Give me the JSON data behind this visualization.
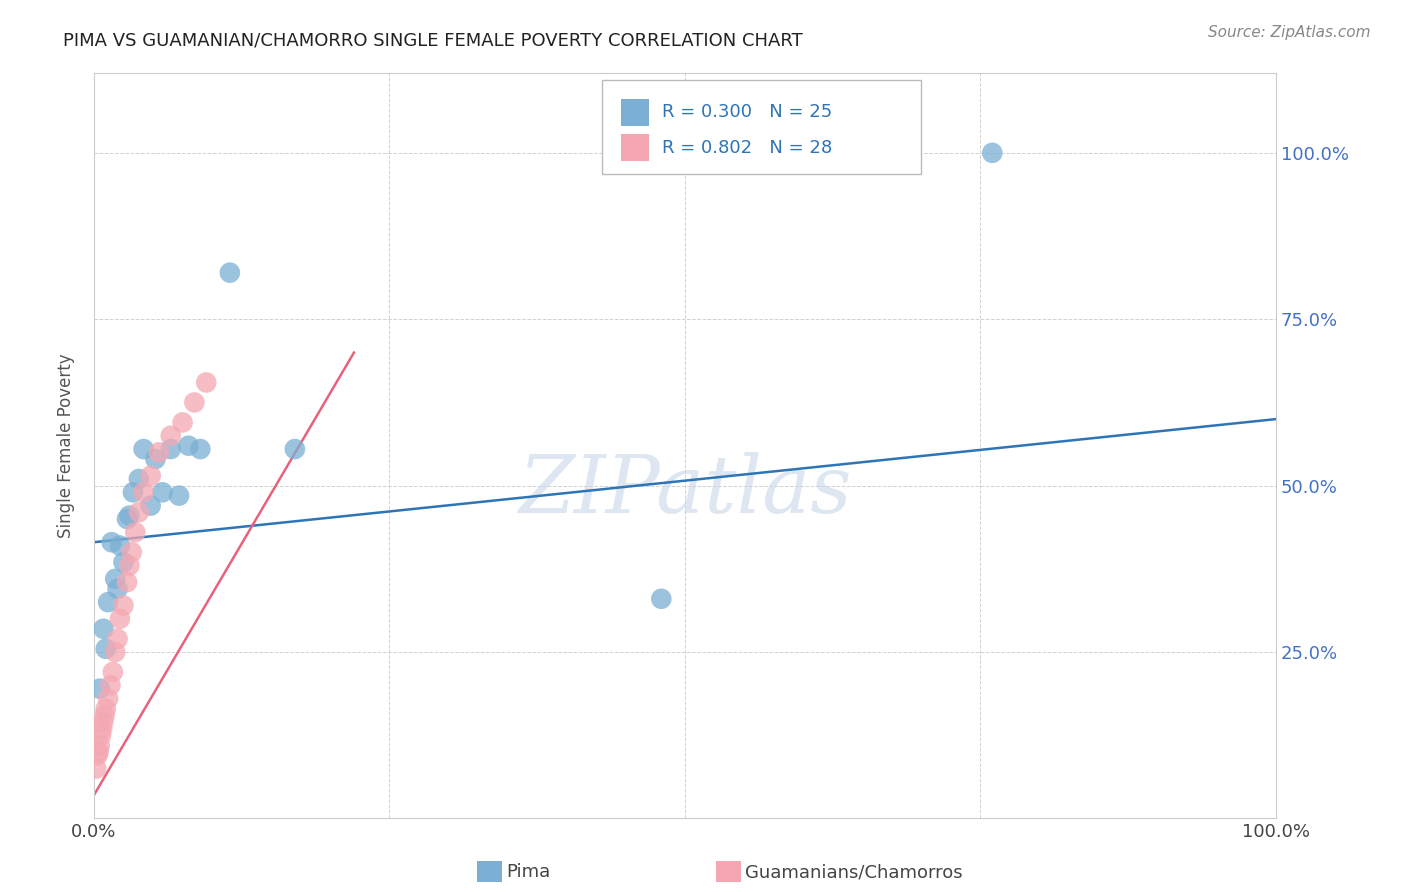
{
  "title": "PIMA VS GUAMANIAN/CHAMORRO SINGLE FEMALE POVERTY CORRELATION CHART",
  "source": "Source: ZipAtlas.com",
  "ylabel": "Single Female Poverty",
  "watermark": "ZIPatlas",
  "xlim": [
    0.0,
    1.0
  ],
  "ylim": [
    0.0,
    1.12
  ],
  "xticks": [
    0.0,
    0.25,
    0.5,
    0.75,
    1.0
  ],
  "yticks": [
    0.0,
    0.25,
    0.5,
    0.75,
    1.0
  ],
  "xtick_labels": [
    "0.0%",
    "",
    "",
    "",
    "100.0%"
  ],
  "ytick_labels": [
    "",
    "25.0%",
    "50.0%",
    "75.0%",
    "100.0%"
  ],
  "pima_R": "0.300",
  "pima_N": "25",
  "guam_R": "0.802",
  "guam_N": "28",
  "pima_color": "#7bafd4",
  "guam_color": "#f4a7b2",
  "pima_line_color": "#2e75b6",
  "guam_line_color": "#e8627a",
  "background_color": "#ffffff",
  "grid_color": "#d0d0d0",
  "pima_points_x": [
    0.005,
    0.008,
    0.01,
    0.012,
    0.015,
    0.018,
    0.02,
    0.022,
    0.025,
    0.028,
    0.03,
    0.033,
    0.038,
    0.042,
    0.048,
    0.052,
    0.058,
    0.065,
    0.072,
    0.08,
    0.09,
    0.115,
    0.17,
    0.48,
    0.76
  ],
  "pima_points_y": [
    0.195,
    0.285,
    0.255,
    0.325,
    0.415,
    0.36,
    0.345,
    0.41,
    0.385,
    0.45,
    0.455,
    0.49,
    0.51,
    0.555,
    0.47,
    0.54,
    0.49,
    0.555,
    0.485,
    0.56,
    0.555,
    0.82,
    0.555,
    0.33,
    1.0
  ],
  "guam_points_x": [
    0.002,
    0.003,
    0.004,
    0.005,
    0.006,
    0.007,
    0.008,
    0.009,
    0.01,
    0.012,
    0.014,
    0.016,
    0.018,
    0.02,
    0.022,
    0.025,
    0.028,
    0.03,
    0.032,
    0.035,
    0.038,
    0.042,
    0.048,
    0.055,
    0.065,
    0.075,
    0.085,
    0.095
  ],
  "guam_points_y": [
    0.075,
    0.095,
    0.1,
    0.11,
    0.125,
    0.135,
    0.145,
    0.155,
    0.165,
    0.18,
    0.2,
    0.22,
    0.25,
    0.27,
    0.3,
    0.32,
    0.355,
    0.38,
    0.4,
    0.43,
    0.46,
    0.49,
    0.515,
    0.55,
    0.575,
    0.595,
    0.625,
    0.655
  ],
  "pima_line_x": [
    0.0,
    1.0
  ],
  "pima_line_y": [
    0.415,
    0.6
  ],
  "guam_line_x": [
    0.0,
    0.22
  ],
  "guam_line_y": [
    0.035,
    0.7
  ]
}
